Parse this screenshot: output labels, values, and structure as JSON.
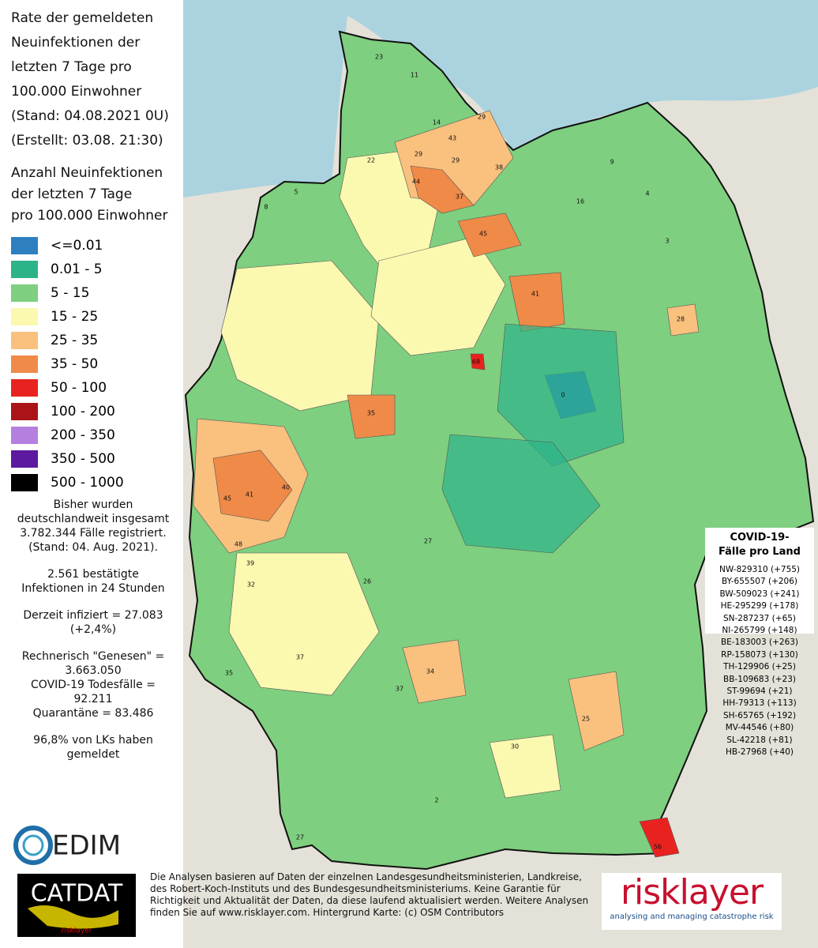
{
  "header": {
    "title_lines": [
      "Rate der gemeldeten",
      "Neuinfektionen der",
      "letzten 7 Tage pro",
      "100.000 Einwohner",
      "(Stand: 04.08.2021 0U)",
      "(Erstellt: 03.08. 21:30)"
    ]
  },
  "legend": {
    "title_lines": [
      "Anzahl Neuinfektionen",
      "der letzten 7 Tage",
      "pro 100.000 Einwohner"
    ],
    "items": [
      {
        "label": "<=0.01",
        "color": "#2e7fc0"
      },
      {
        "label": "0.01 - 5",
        "color": "#2db38a"
      },
      {
        "label": "5 - 15",
        "color": "#7ecf7f"
      },
      {
        "label": "15 - 25",
        "color": "#fbf8b0"
      },
      {
        "label": "25 - 35",
        "color": "#f9c07e"
      },
      {
        "label": "35 - 50",
        "color": "#f08a48"
      },
      {
        "label": "50 - 100",
        "color": "#e8231f"
      },
      {
        "label": "100 - 200",
        "color": "#aa1418"
      },
      {
        "label": "200 - 350",
        "color": "#b57fe0"
      },
      {
        "label": "350 - 500",
        "color": "#5b1aa0"
      },
      {
        "label": "500 - 1000",
        "color": "#000000"
      }
    ]
  },
  "stats": {
    "lines": [
      "Bisher wurden",
      "deutschlandweit insgesamt",
      "3.782.344 Fälle registriert.",
      "(Stand: 04. Aug. 2021).",
      "",
      "2.561 bestätigte",
      "Infektionen in 24 Stunden",
      "",
      "Derzeit infiziert = 27.083",
      "(+2,4%)",
      "",
      "Rechnerisch \"Genesen\" =",
      "3.663.050",
      "COVID-19 Todesfälle =",
      "92.211",
      "Quarantäne = 83.486",
      "",
      "96,8% von LKs haben",
      "gemeldet"
    ]
  },
  "land_box": {
    "title_lines": [
      "COVID-19-",
      "Fälle pro Land"
    ],
    "lines": [
      "NW-829310 (+755)",
      "BY-655507 (+206)",
      "BW-509023 (+241)",
      "HE-295299 (+178)",
      "SN-287237 (+65)",
      "NI-265799 (+148)",
      "BE-183003 (+263)",
      "RP-158073 (+130)",
      "TH-129906 (+25)",
      "BB-109683 (+23)",
      "ST-99694 (+21)",
      "HH-79313 (+113)",
      "SH-65765 (+192)",
      "MV-44546 (+80)",
      "SL-42218 (+81)",
      "HB-27968 (+40)"
    ]
  },
  "footer": {
    "lines": [
      "Die Analysen basieren auf Daten der einzelnen Landesgesundheitsministerien, Landkreise,",
      "des Robert-Koch-Instituts und des Bundesgesundheitsministeriums. Keine Garantie für",
      "Richtigkeit und Aktualität der Daten, da diese laufend aktualisiert werden. Weitere Analysen",
      "finden Sie auf www.risklayer.com. Hintergrund Karte: (c) OSM Contributors"
    ]
  },
  "logos": {
    "cedim": "EDIM",
    "catdat": "CATDAT",
    "catdat_sub": "risklayer",
    "risklayer": "risklayer",
    "risklayer_tagline": "analysing and managing catastrophe risk"
  },
  "map_labels": [
    23,
    11,
    14,
    29,
    43,
    29,
    29,
    38,
    44,
    37,
    22,
    5,
    8,
    45,
    41,
    28,
    0,
    68,
    35,
    40,
    45,
    41,
    48,
    39,
    4,
    9,
    16,
    3,
    56,
    25,
    34,
    37,
    37,
    35,
    27,
    32,
    26,
    2,
    27,
    30
  ]
}
